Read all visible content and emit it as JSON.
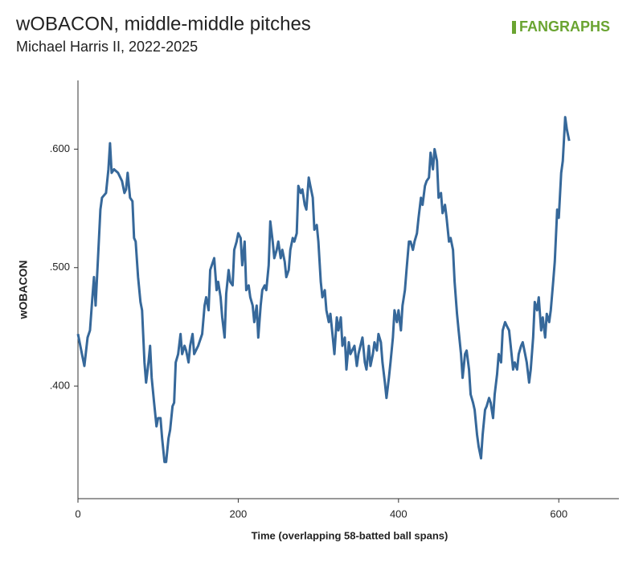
{
  "chart_data": {
    "type": "line",
    "title": "wOBACON, middle-middle pitches",
    "subtitle": "Michael Harris II, 2022-2025",
    "logo": "FANGRAPHS",
    "x_label": "Time (overlapping 58-batted ball spans)",
    "y_label": "wOBACON",
    "xlim": [
      0,
      675
    ],
    "xticks": [
      0,
      200,
      400,
      600
    ],
    "ylim": [
      0.305,
      0.658
    ],
    "yticks": [
      {
        "value": 0.4,
        "label": ".400"
      },
      {
        "value": 0.5,
        "label": ".500"
      },
      {
        "value": 0.6,
        "label": ".600"
      }
    ],
    "grid": false,
    "series": [
      {
        "name": "wOBACON",
        "color": "#36689a",
        "x": [
          0,
          5,
          8,
          12,
          15,
          18,
          20,
          22,
          25,
          28,
          30,
          35,
          38,
          40,
          42,
          45,
          50,
          55,
          58,
          60,
          62,
          65,
          68,
          70,
          72,
          75,
          78,
          80,
          83,
          85,
          88,
          90,
          92,
          95,
          98,
          100,
          103,
          105,
          108,
          110,
          113,
          115,
          118,
          120,
          122,
          125,
          128,
          130,
          133,
          135,
          138,
          140,
          143,
          145,
          150,
          155,
          158,
          160,
          163,
          165,
          170,
          173,
          175,
          178,
          180,
          183,
          185,
          188,
          190,
          193,
          195,
          198,
          200,
          203,
          205,
          208,
          210,
          213,
          215,
          218,
          220,
          223,
          225,
          228,
          230,
          233,
          235,
          238,
          240,
          243,
          245,
          248,
          250,
          253,
          255,
          258,
          260,
          263,
          265,
          268,
          270,
          273,
          275,
          278,
          280,
          283,
          285,
          288,
          290,
          293,
          295,
          298,
          300,
          303,
          305,
          308,
          310,
          313,
          315,
          318,
          320,
          323,
          325,
          328,
          330,
          333,
          335,
          338,
          340,
          345,
          348,
          350,
          355,
          358,
          360,
          363,
          365,
          368,
          370,
          373,
          375,
          378,
          380,
          383,
          385,
          388,
          390,
          393,
          395,
          398,
          400,
          403,
          405,
          408,
          410,
          413,
          415,
          418,
          420,
          423,
          425,
          428,
          430,
          433,
          435,
          438,
          440,
          443,
          445,
          448,
          450,
          453,
          455,
          458,
          460,
          463,
          465,
          468,
          470,
          473,
          475,
          478,
          480,
          483,
          485,
          488,
          490,
          493,
          495,
          498,
          500,
          503,
          505,
          508,
          510,
          513,
          515,
          518,
          520,
          523,
          525,
          528,
          530,
          533,
          535,
          538,
          540,
          543,
          545,
          548,
          550,
          553,
          555,
          558,
          560,
          563,
          565,
          568,
          570,
          573,
          575,
          578,
          580,
          583,
          585,
          588,
          590,
          593,
          595,
          598,
          600,
          603,
          605,
          608,
          610,
          613
        ],
        "values": [
          0.444,
          0.427,
          0.417,
          0.441,
          0.447,
          0.475,
          0.492,
          0.468,
          0.508,
          0.549,
          0.559,
          0.563,
          0.583,
          0.605,
          0.58,
          0.583,
          0.58,
          0.573,
          0.563,
          0.566,
          0.58,
          0.559,
          0.556,
          0.525,
          0.522,
          0.492,
          0.471,
          0.464,
          0.42,
          0.403,
          0.42,
          0.434,
          0.407,
          0.386,
          0.366,
          0.373,
          0.373,
          0.356,
          0.336,
          0.336,
          0.356,
          0.363,
          0.383,
          0.386,
          0.42,
          0.427,
          0.444,
          0.427,
          0.434,
          0.43,
          0.42,
          0.434,
          0.444,
          0.427,
          0.434,
          0.444,
          0.468,
          0.475,
          0.464,
          0.498,
          0.508,
          0.481,
          0.488,
          0.475,
          0.458,
          0.441,
          0.478,
          0.498,
          0.488,
          0.485,
          0.515,
          0.522,
          0.529,
          0.525,
          0.502,
          0.522,
          0.481,
          0.485,
          0.475,
          0.468,
          0.454,
          0.468,
          0.441,
          0.468,
          0.481,
          0.485,
          0.481,
          0.502,
          0.539,
          0.522,
          0.508,
          0.515,
          0.522,
          0.508,
          0.515,
          0.505,
          0.492,
          0.498,
          0.515,
          0.525,
          0.522,
          0.529,
          0.569,
          0.563,
          0.566,
          0.553,
          0.549,
          0.576,
          0.569,
          0.559,
          0.532,
          0.536,
          0.522,
          0.488,
          0.475,
          0.481,
          0.464,
          0.454,
          0.461,
          0.441,
          0.427,
          0.458,
          0.447,
          0.458,
          0.434,
          0.441,
          0.414,
          0.437,
          0.427,
          0.434,
          0.417,
          0.427,
          0.441,
          0.42,
          0.414,
          0.434,
          0.417,
          0.427,
          0.437,
          0.43,
          0.444,
          0.437,
          0.42,
          0.403,
          0.39,
          0.407,
          0.42,
          0.441,
          0.464,
          0.454,
          0.464,
          0.447,
          0.468,
          0.481,
          0.498,
          0.522,
          0.522,
          0.515,
          0.522,
          0.529,
          0.542,
          0.559,
          0.553,
          0.569,
          0.573,
          0.576,
          0.597,
          0.583,
          0.6,
          0.59,
          0.559,
          0.563,
          0.546,
          0.553,
          0.542,
          0.522,
          0.525,
          0.515,
          0.488,
          0.461,
          0.447,
          0.427,
          0.407,
          0.427,
          0.43,
          0.414,
          0.393,
          0.386,
          0.38,
          0.359,
          0.349,
          0.339,
          0.359,
          0.38,
          0.383,
          0.39,
          0.386,
          0.373,
          0.393,
          0.41,
          0.427,
          0.42,
          0.447,
          0.454,
          0.451,
          0.447,
          0.434,
          0.414,
          0.42,
          0.414,
          0.427,
          0.434,
          0.437,
          0.427,
          0.42,
          0.403,
          0.414,
          0.441,
          0.471,
          0.464,
          0.475,
          0.447,
          0.458,
          0.441,
          0.461,
          0.454,
          0.464,
          0.488,
          0.505,
          0.549,
          0.542,
          0.58,
          0.59,
          0.627,
          0.617,
          0.607
        ]
      }
    ]
  }
}
